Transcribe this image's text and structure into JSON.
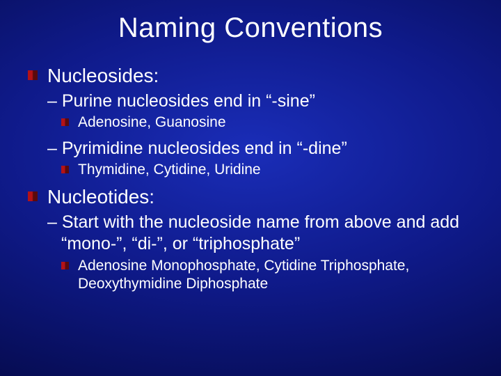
{
  "slide": {
    "title": "Naming Conventions",
    "background": {
      "type": "radial-gradient",
      "center_color": "#1a2db8",
      "mid_color": "#0f1a8a",
      "outer_color": "#050a4a",
      "edge_color": "#020525"
    },
    "text_color": "#ffffff",
    "title_fontsize": 40,
    "body": {
      "level1_fontsize": 28,
      "level2_fontsize": 25,
      "level3_fontsize": 21,
      "bullet_red_light": "#b31217",
      "bullet_red_dark": "#5a0a0d",
      "items": [
        {
          "label": "Nucleosides:",
          "children": [
            {
              "label": "– Purine nucleosides end in “-sine”",
              "children": [
                {
                  "label": "Adenosine, Guanosine"
                }
              ]
            },
            {
              "label": "– Pyrimidine nucleosides end in “-dine”",
              "children": [
                {
                  "label": "Thymidine, Cytidine, Uridine"
                }
              ]
            }
          ]
        },
        {
          "label": "Nucleotides:",
          "children": [
            {
              "label": "– Start with the nucleoside name from above and add “mono-”, “di-”, or “triphosphate”",
              "children": [
                {
                  "label": "Adenosine Monophosphate, Cytidine Triphosphate, Deoxythymidine Diphosphate"
                }
              ]
            }
          ]
        }
      ]
    }
  }
}
